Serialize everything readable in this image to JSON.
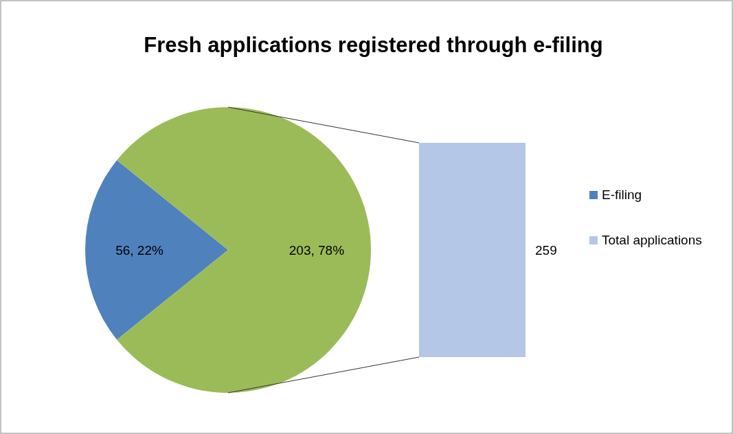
{
  "chart_data": [
    {
      "type": "pie",
      "title": "Fresh applications registered through e-filing",
      "categories": [
        "E-filing",
        null
      ],
      "values": [
        56,
        203
      ],
      "colors": [
        "#4f81bd",
        "#9bbb59"
      ],
      "value_labels": [
        "56, 22%",
        "203, 78%"
      ],
      "legend": "right"
    },
    {
      "type": "other",
      "series": [
        {
          "name": "Total applications",
          "color": "#b4c7e7",
          "values": [
            259
          ]
        }
      ],
      "data_labels": true,
      "legend": "right"
    }
  ]
}
